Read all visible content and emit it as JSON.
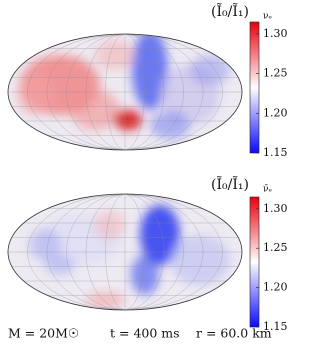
{
  "chart_data": [
    {
      "type": "skymap",
      "title": "(Ĩ₀/Ĩ₁)",
      "subscript": "νₑ",
      "clim": [
        1.15,
        1.315
      ],
      "cticks": [
        1.15,
        {
          "value": 1.2,
          "label": "1.20"
        },
        1.25,
        {
          "value": 1.3,
          "label": "1.30"
        }
      ],
      "colors": [
        "#0a0aff",
        "#ffffff",
        "#e8000b"
      ]
    },
    {
      "type": "skymap",
      "title": "(Ĩ₀/Ĩ₁)",
      "subscript": "ν̄ₑ",
      "clim": [
        1.15,
        1.315
      ],
      "cticks": [
        1.15,
        {
          "value": 1.2,
          "label": "1.20"
        },
        1.25,
        {
          "value": 1.3,
          "label": "1.30"
        }
      ],
      "colors": [
        "#0a0aff",
        "#ffffff",
        "#e8000b"
      ]
    }
  ],
  "caption": [
    "M = 20M☉",
    "t = 400 ms",
    "r = 60.0 km"
  ]
}
